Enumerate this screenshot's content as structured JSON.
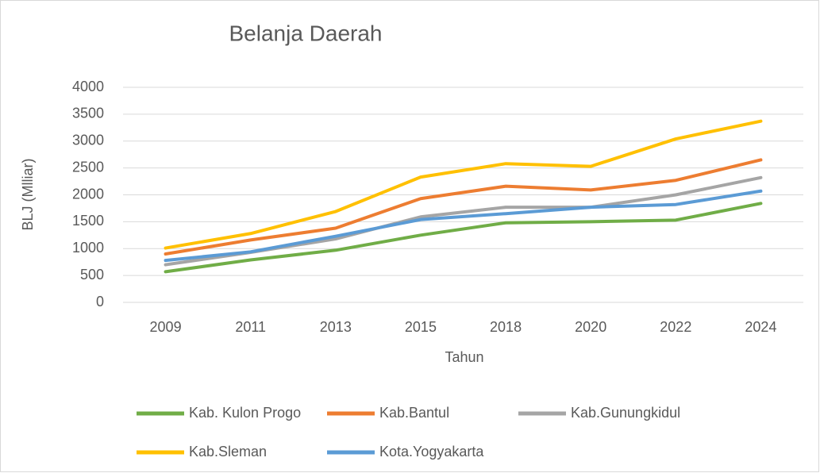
{
  "chart_data": {
    "type": "line",
    "title": "Belanja Daerah",
    "x_label": "Tahun",
    "y_label": "BLJ (Mlliar)",
    "categories": [
      "2009",
      "2011",
      "2013",
      "2015",
      "2018",
      "2020",
      "2022",
      "2024"
    ],
    "series": [
      {
        "name": "Kab. Kulon Progo",
        "color": "#70ad47",
        "values": [
          570,
          790,
          970,
          1250,
          1480,
          1500,
          1530,
          1840
        ]
      },
      {
        "name": "Kab.Bantul",
        "color": "#ed7d31",
        "values": [
          900,
          1160,
          1380,
          1930,
          2160,
          2090,
          2270,
          2650
        ]
      },
      {
        "name": "Kab.Gunungkidul",
        "color": "#a5a5a5",
        "values": [
          700,
          930,
          1180,
          1590,
          1770,
          1770,
          2000,
          2320
        ]
      },
      {
        "name": "Kab.Sleman",
        "color": "#ffc000",
        "values": [
          1010,
          1280,
          1690,
          2330,
          2580,
          2530,
          3040,
          3370
        ]
      },
      {
        "name": "Kota.Yogyakarta",
        "color": "#5b9bd5",
        "values": [
          780,
          940,
          1230,
          1540,
          1650,
          1770,
          1820,
          2070
        ]
      }
    ],
    "ylim": [
      0,
      4000
    ],
    "yticks": [
      0,
      500,
      1000,
      1500,
      2000,
      2500,
      3000,
      3500,
      4000
    ],
    "grid": true,
    "legend": "bottom"
  }
}
